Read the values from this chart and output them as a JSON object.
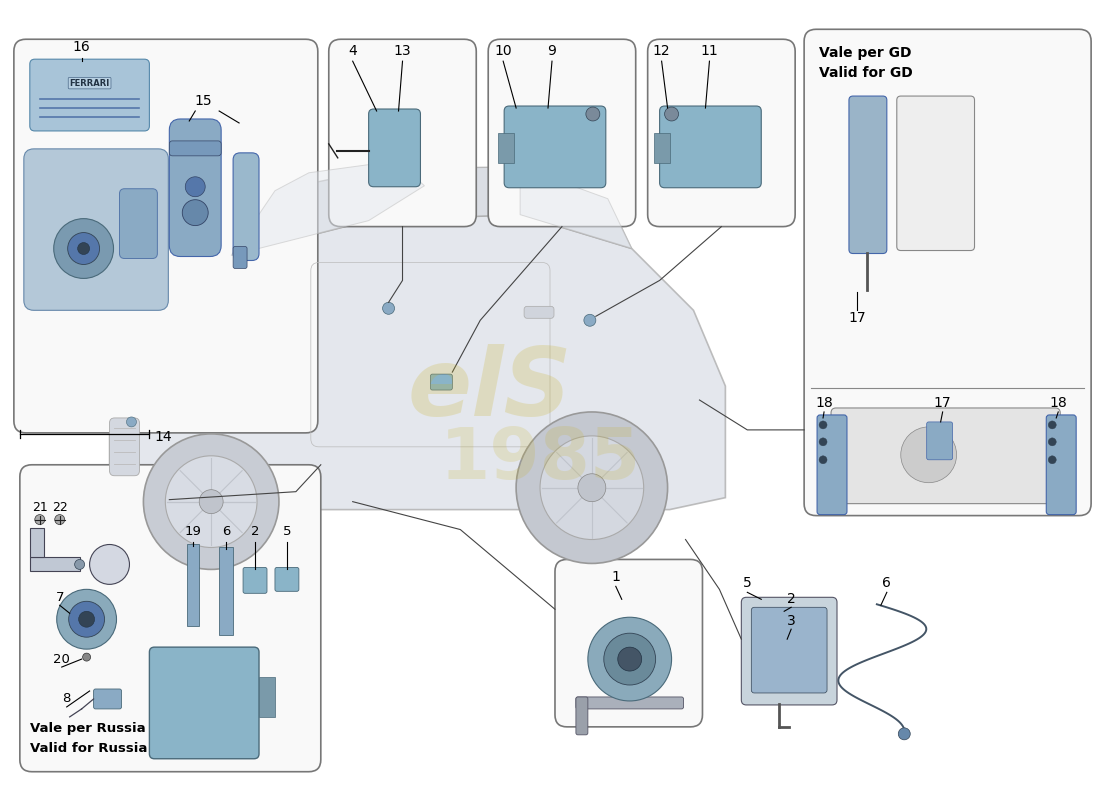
{
  "bg_color": "#ffffff",
  "part_blue": "#8ab4c8",
  "part_dark": "#4a6a7a",
  "box_bg": "#f9f9f9",
  "box_edge": "#777777",
  "car_body": "#dce0e8",
  "car_line": "#aaaaaa",
  "wm_color": "#c8b020",
  "label_gd_1": "Vale per GD",
  "label_gd_2": "Valid for GD",
  "label_ru_1": "Vale per Russia",
  "label_ru_2": "Valid for Russia"
}
